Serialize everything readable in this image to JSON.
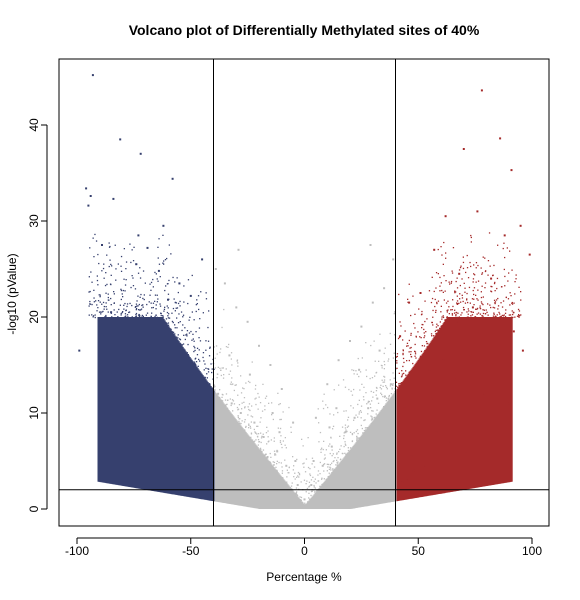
{
  "chart_data": {
    "type": "scatter",
    "title": "Volcano plot of Differentially Methylated sites of 40%",
    "xlabel": "Percentage %",
    "ylabel": "-log10 (pValue)",
    "xlim": [
      -100,
      100
    ],
    "ylim": [
      0,
      45
    ],
    "x_ticks": [
      -100,
      -50,
      0,
      50,
      100
    ],
    "y_ticks": [
      0,
      10,
      20,
      30,
      40
    ],
    "grid": false,
    "legend": "none",
    "thresholds": {
      "vertical": [
        -40,
        40
      ],
      "horizontal": [
        2
      ]
    },
    "colors": {
      "hypomethylated": "#36406e",
      "not_significant": "#bebebe",
      "hypermethylated": "#a52a2a",
      "lines": "#000000"
    },
    "series": [
      {
        "category": "hypomethylated",
        "x": [
          -93,
          -96,
          -81,
          -72,
          -58,
          -95,
          -84,
          -94,
          -73,
          -69,
          -89,
          -62,
          -74,
          -64,
          -55,
          -45,
          -60,
          -50,
          -88,
          -99,
          -75,
          -65,
          -53,
          -47,
          -42,
          -80,
          -70,
          -60,
          -52,
          -46,
          -41,
          -85,
          -66,
          -56,
          -48,
          -43,
          -58,
          -50,
          -44,
          -41
        ],
        "y": [
          45.2,
          33.4,
          38.5,
          37.0,
          34.4,
          31.6,
          32.3,
          32.6,
          28.5,
          27.2,
          27.5,
          29.5,
          25.5,
          24.8,
          23.5,
          26.0,
          21.8,
          22.2,
          18.0,
          16.5,
          15.5,
          14.0,
          12.5,
          11.0,
          9.5,
          12.0,
          10.5,
          8.5,
          7.0,
          5.5,
          4.0,
          20.5,
          19.0,
          17.5,
          15.0,
          13.0,
          6.5,
          4.5,
          3.2,
          2.8
        ]
      },
      {
        "category": "hypermethylated",
        "x": [
          78,
          86,
          91,
          70,
          76,
          95,
          62,
          88,
          99,
          57,
          68,
          82,
          51,
          74,
          84,
          92,
          46,
          60,
          73,
          42,
          55,
          66,
          79,
          90,
          44,
          50,
          58,
          64,
          71,
          47,
          53,
          41,
          45,
          43,
          48,
          96,
          80,
          67,
          61,
          56
        ],
        "y": [
          43.6,
          38.6,
          35.3,
          37.5,
          31.0,
          29.5,
          30.5,
          28.5,
          26.5,
          27.0,
          24.5,
          24.0,
          22.5,
          21.0,
          20.0,
          18.5,
          21.5,
          17.5,
          16.0,
          18.0,
          14.5,
          13.5,
          12.0,
          11.0,
          10.5,
          9.0,
          8.0,
          7.0,
          6.0,
          5.5,
          4.5,
          3.5,
          3.0,
          2.8,
          4.0,
          16.5,
          14.5,
          19.5,
          15.5,
          11.5
        ]
      },
      {
        "category": "not_significant",
        "x": [
          -39,
          -35,
          -30,
          -25,
          -20,
          -15,
          -10,
          -5,
          0,
          5,
          10,
          15,
          20,
          25,
          30,
          35,
          39,
          -38,
          -32,
          -28,
          -22,
          -18,
          -12,
          -8,
          -3,
          3,
          8,
          12,
          18,
          22,
          28,
          32,
          38,
          -36,
          -26,
          -16,
          -6,
          6,
          16,
          26,
          36,
          -33,
          -24,
          -14,
          -4,
          4,
          14,
          24,
          33,
          -29,
          29,
          -11,
          11,
          -20,
          20,
          0,
          -2,
          2
        ],
        "y": [
          25.0,
          23.5,
          21.0,
          19.5,
          17.0,
          15.0,
          12.5,
          9.0,
          1.0,
          9.5,
          13.0,
          15.5,
          17.5,
          19.0,
          21.5,
          23.0,
          26.0,
          12.0,
          11.0,
          10.0,
          9.0,
          7.5,
          6.0,
          4.5,
          2.5,
          2.5,
          4.5,
          6.5,
          8.0,
          9.5,
          10.5,
          11.5,
          13.0,
          5.0,
          4.0,
          3.0,
          1.5,
          1.5,
          3.0,
          4.0,
          5.5,
          16.0,
          14.0,
          10.0,
          5.0,
          5.0,
          10.5,
          14.5,
          16.5,
          27.0,
          27.5,
          8.0,
          8.5,
          1.5,
          1.5,
          0.3,
          0.6,
          0.6
        ]
      }
    ]
  }
}
